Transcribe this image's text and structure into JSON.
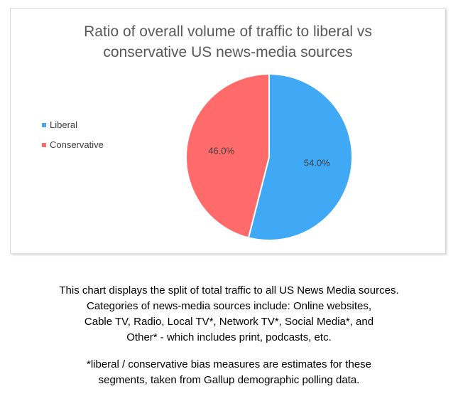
{
  "chart_data": {
    "type": "pie",
    "title": "Ratio of overall volume of traffic to liberal vs conservative US news-media sources",
    "title_lines": [
      "Ratio of overall volume of traffic to liberal vs",
      "conservative US news-media sources"
    ],
    "categories": [
      "Liberal",
      "Conservative"
    ],
    "values": [
      54.0,
      46.0
    ],
    "data_labels": [
      "54.0%",
      "46.0%"
    ],
    "colors": [
      "#3fa9f5",
      "#ff6b6b"
    ],
    "legend_position": "left",
    "start_angle": "12 o'clock, clockwise"
  },
  "caption": {
    "paragraph1": [
      "This chart displays the split of total traffic to all US News Media sources.",
      "Categories of news-media sources include:  Online websites,",
      "Cable TV, Radio, Local TV*, Network TV*, Social Media*, and",
      "Other* - which includes print, podcasts, etc."
    ],
    "paragraph2": [
      "*liberal / conservative bias measures are estimates for these",
      "segments, taken from Gallup demographic polling data."
    ]
  }
}
